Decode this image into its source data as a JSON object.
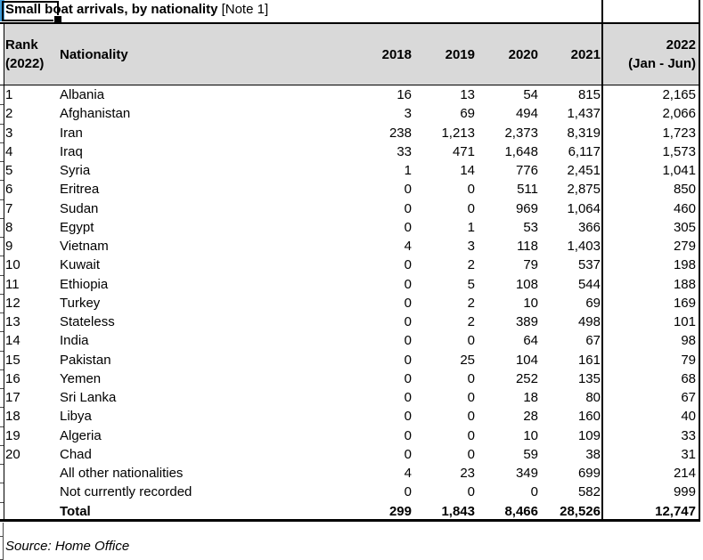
{
  "title": {
    "main": "Small boat arrivals, by nationality",
    "note": " [Note 1]"
  },
  "header": {
    "rank_line1": "Rank",
    "rank_line2": "(2022)",
    "nationality_label": "Nationality",
    "years": [
      "2018",
      "2019",
      "2020",
      "2021"
    ],
    "last_col_line1": "2022",
    "last_col_line2": "(Jan - Jun)"
  },
  "table": {
    "rows": [
      {
        "rank": "1",
        "nationality": "Albania",
        "values": [
          "16",
          "13",
          "54",
          "815",
          "2,165"
        ]
      },
      {
        "rank": "2",
        "nationality": "Afghanistan",
        "values": [
          "3",
          "69",
          "494",
          "1,437",
          "2,066"
        ]
      },
      {
        "rank": "3",
        "nationality": "Iran",
        "values": [
          "238",
          "1,213",
          "2,373",
          "8,319",
          "1,723"
        ]
      },
      {
        "rank": "4",
        "nationality": "Iraq",
        "values": [
          "33",
          "471",
          "1,648",
          "6,117",
          "1,573"
        ]
      },
      {
        "rank": "5",
        "nationality": "Syria",
        "values": [
          "1",
          "14",
          "776",
          "2,451",
          "1,041"
        ]
      },
      {
        "rank": "6",
        "nationality": "Eritrea",
        "values": [
          "0",
          "0",
          "511",
          "2,875",
          "850"
        ]
      },
      {
        "rank": "7",
        "nationality": "Sudan",
        "values": [
          "0",
          "0",
          "969",
          "1,064",
          "460"
        ]
      },
      {
        "rank": "8",
        "nationality": "Egypt",
        "values": [
          "0",
          "1",
          "53",
          "366",
          "305"
        ]
      },
      {
        "rank": "9",
        "nationality": "Vietnam",
        "values": [
          "4",
          "3",
          "118",
          "1,403",
          "279"
        ]
      },
      {
        "rank": "10",
        "nationality": "Kuwait",
        "values": [
          "0",
          "2",
          "79",
          "537",
          "198"
        ]
      },
      {
        "rank": "11",
        "nationality": "Ethiopia",
        "values": [
          "0",
          "5",
          "108",
          "544",
          "188"
        ]
      },
      {
        "rank": "12",
        "nationality": "Turkey",
        "values": [
          "0",
          "2",
          "10",
          "69",
          "169"
        ]
      },
      {
        "rank": "13",
        "nationality": "Stateless",
        "values": [
          "0",
          "2",
          "389",
          "498",
          "101"
        ]
      },
      {
        "rank": "14",
        "nationality": "India",
        "values": [
          "0",
          "0",
          "64",
          "67",
          "98"
        ]
      },
      {
        "rank": "15",
        "nationality": "Pakistan",
        "values": [
          "0",
          "25",
          "104",
          "161",
          "79"
        ]
      },
      {
        "rank": "16",
        "nationality": "Yemen",
        "values": [
          "0",
          "0",
          "252",
          "135",
          "68"
        ]
      },
      {
        "rank": "17",
        "nationality": "Sri Lanka",
        "values": [
          "0",
          "0",
          "18",
          "80",
          "67"
        ]
      },
      {
        "rank": "18",
        "nationality": "Libya",
        "values": [
          "0",
          "0",
          "28",
          "160",
          "40"
        ]
      },
      {
        "rank": "19",
        "nationality": "Algeria",
        "values": [
          "0",
          "0",
          "10",
          "109",
          "33"
        ]
      },
      {
        "rank": "20",
        "nationality": "Chad",
        "values": [
          "0",
          "0",
          "59",
          "38",
          "31"
        ]
      },
      {
        "rank": "",
        "nationality": "All other nationalities",
        "values": [
          "4",
          "23",
          "349",
          "699",
          "214"
        ]
      },
      {
        "rank": "",
        "nationality": "Not currently recorded",
        "values": [
          "0",
          "0",
          "0",
          "582",
          "999"
        ]
      },
      {
        "rank": "",
        "nationality": "Total",
        "values": [
          "299",
          "1,843",
          "8,466",
          "28,526",
          "12,747"
        ],
        "bold": true
      }
    ]
  },
  "footer": {
    "source": "Source: Home Office"
  },
  "colors": {
    "header_bg": "#d9d9d9",
    "border": "#000000",
    "selection_blue": "#3e9cd9"
  }
}
